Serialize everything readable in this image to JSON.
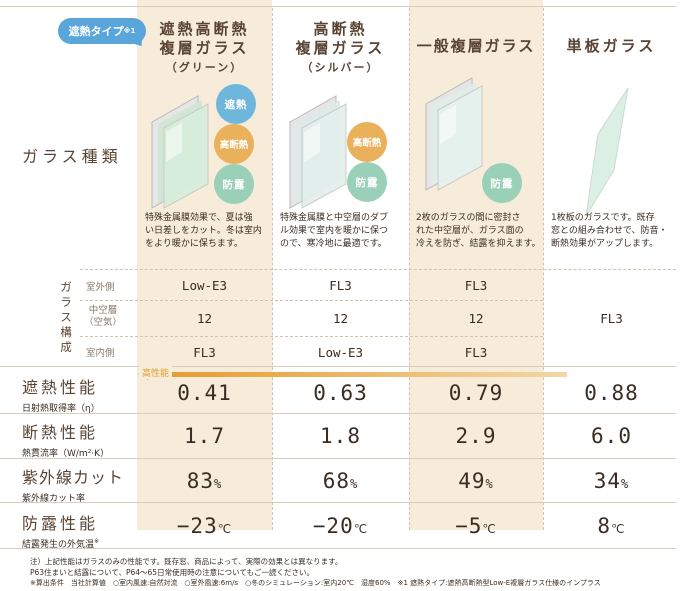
{
  "badge": {
    "label": "遮熱タイプ",
    "mark": "※1"
  },
  "columns": [
    {
      "title_line1": "遮熱高断熱",
      "title_line2": "複層ガラス",
      "subtitle": "（グリーン）",
      "features": [
        "遮熱",
        "高断熱",
        "防露"
      ],
      "description": [
        "特殊金属膜効果で、夏は強",
        "い日差しをカット。冬は室内",
        "をより暖かに保ちます。"
      ]
    },
    {
      "title_line1": "高断熱",
      "title_line2": "複層ガラス",
      "subtitle": "（シルバー）",
      "features": [
        "高断熱",
        "防露"
      ],
      "description": [
        "特殊金属膜と中空層のダブ",
        "ル効果で室内を暖かに保つ",
        "ので、寒冷地に最適です。"
      ]
    },
    {
      "title_line1": "一般複層ガラス",
      "title_line2": "",
      "subtitle": "",
      "features": [
        "防露"
      ],
      "description": [
        "2枚のガラスの間に密封さ",
        "れた中空層が、ガラス面の",
        "冷えを防ぎ、結露を抑えます。"
      ]
    },
    {
      "title_line1": "単板ガラス",
      "title_line2": "",
      "subtitle": "",
      "features": [],
      "description": [
        "1枚板のガラスです。既存",
        "窓との組み合わせで、防音・",
        "断熱効果がアップします。"
      ]
    }
  ],
  "labels": {
    "glass_type": "ガラス種類",
    "glass_config": [
      "ガ",
      "ラ",
      "ス",
      "構",
      "成"
    ],
    "outdoor": "室外側",
    "air_layer": [
      "中空層",
      "（空気）"
    ],
    "indoor": "室内側",
    "high_perf": "高性能"
  },
  "composition": {
    "outdoor": [
      "Low-E3",
      "FL3",
      "FL3"
    ],
    "air": [
      "12",
      "12",
      "12"
    ],
    "indoor": [
      "FL3",
      "Low-E3",
      "FL3"
    ],
    "single": "FL3"
  },
  "metrics": [
    {
      "label": "遮熱性能",
      "sub": "日射熱取得率（η）",
      "values": [
        "0.41",
        "0.63",
        "0.79",
        "0.88"
      ],
      "unit": ""
    },
    {
      "label": "断熱性能",
      "sub": "熱貫流率（W/m²·K）",
      "values": [
        "1.7",
        "1.8",
        "2.9",
        "6.0"
      ],
      "unit": ""
    },
    {
      "label": "紫外線カット",
      "sub": "紫外線カット率",
      "values": [
        "83",
        "68",
        "49",
        "34"
      ],
      "unit": "%"
    },
    {
      "label": "防露性能",
      "sub": "結露発生の外気温",
      "sub_mark": "※",
      "values": [
        "−23",
        "−20",
        "−5",
        "8"
      ],
      "unit": "℃"
    }
  ],
  "notes": [
    "注）上記性能はガラスのみの性能です。既存窓、商品によって、実際の効果とは異なります。",
    "P63住まいと結露について、P64〜65日常使用時の注意についてもご一読ください。",
    "※算出条件　当社計算値　○室内風速:自然対流　○室外風速:6m/s　○冬のシミュレーション:室内20℃　湿度60%　※1 遮熱タイプ:遮熱高断熱型Low-E複層ガラス仕様のインプラス"
  ],
  "colors": {
    "column_bg": "#f6ecd9",
    "accent_orange": "#e8a441",
    "badge_blue": "#5aa6da"
  }
}
